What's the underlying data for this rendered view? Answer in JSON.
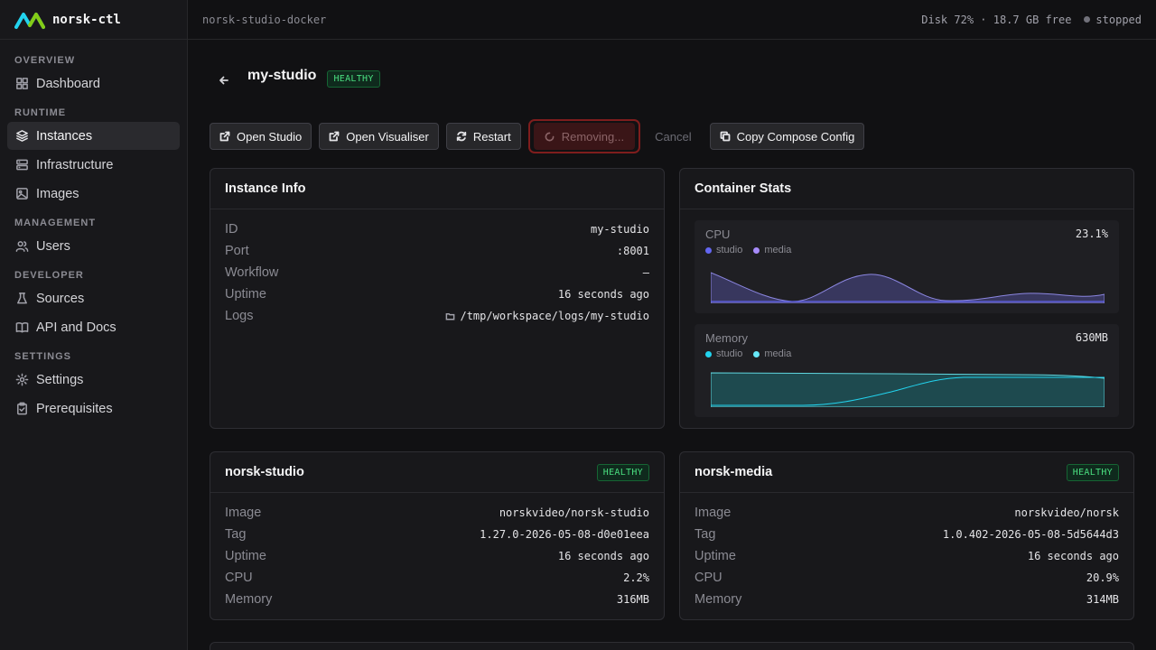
{
  "app": {
    "name": "norsk-ctl"
  },
  "topbar": {
    "context": "norsk-studio-docker",
    "disk": "Disk 72% · 18.7 GB free",
    "status": "stopped"
  },
  "sidebar": {
    "sections": [
      {
        "label": "OVERVIEW",
        "items": [
          {
            "label": "Dashboard",
            "icon": "dashboard-icon"
          }
        ]
      },
      {
        "label": "RUNTIME",
        "items": [
          {
            "label": "Instances",
            "icon": "layers-icon",
            "active": true
          },
          {
            "label": "Infrastructure",
            "icon": "server-icon"
          },
          {
            "label": "Images",
            "icon": "image-icon"
          }
        ]
      },
      {
        "label": "MANAGEMENT",
        "items": [
          {
            "label": "Users",
            "icon": "users-icon"
          }
        ]
      },
      {
        "label": "DEVELOPER",
        "items": [
          {
            "label": "Sources",
            "icon": "flask-icon"
          },
          {
            "label": "API and Docs",
            "icon": "book-icon"
          }
        ]
      },
      {
        "label": "SETTINGS",
        "items": [
          {
            "label": "Settings",
            "icon": "gear-icon"
          },
          {
            "label": "Prerequisites",
            "icon": "clipboard-icon"
          }
        ]
      }
    ]
  },
  "page": {
    "title": "my-studio",
    "status": "HEALTHY"
  },
  "toolbar": {
    "open_studio": "Open Studio",
    "open_visualiser": "Open Visualiser",
    "restart": "Restart",
    "removing": "Removing...",
    "cancel": "Cancel",
    "copy_compose": "Copy Compose Config"
  },
  "instance_info": {
    "title": "Instance Info",
    "rows": [
      {
        "key": "ID",
        "value": "my-studio"
      },
      {
        "key": "Port",
        "value": ":8001"
      },
      {
        "key": "Workflow",
        "value": "—"
      },
      {
        "key": "Uptime",
        "value": "16 seconds ago"
      },
      {
        "key": "Logs",
        "value": "/tmp/workspace/logs/my-studio"
      }
    ]
  },
  "container_stats": {
    "title": "Container Stats",
    "cpu": {
      "label": "CPU",
      "value": "23.1%",
      "legend": [
        "studio",
        "media"
      ],
      "colors": {
        "studio": "#6366f1",
        "media": "#a78bfa"
      }
    },
    "memory": {
      "label": "Memory",
      "value": "630MB",
      "legend": [
        "studio",
        "media"
      ],
      "colors": {
        "studio": "#22d3ee",
        "media": "#67e8f9"
      }
    }
  },
  "containers": [
    {
      "name": "norsk-studio",
      "status": "HEALTHY",
      "rows": [
        {
          "key": "Image",
          "value": "norskvideo/norsk-studio"
        },
        {
          "key": "Tag",
          "value": "1.27.0-2026-05-08-d0e01eea"
        },
        {
          "key": "Uptime",
          "value": "16 seconds ago"
        },
        {
          "key": "CPU",
          "value": "2.2%"
        },
        {
          "key": "Memory",
          "value": "316MB"
        }
      ]
    },
    {
      "name": "norsk-media",
      "status": "HEALTHY",
      "rows": [
        {
          "key": "Image",
          "value": "norskvideo/norsk"
        },
        {
          "key": "Tag",
          "value": "1.0.402-2026-05-08-5d5644d3"
        },
        {
          "key": "Uptime",
          "value": "16 seconds ago"
        },
        {
          "key": "CPU",
          "value": "20.9%"
        },
        {
          "key": "Memory",
          "value": "314MB"
        }
      ]
    }
  ]
}
